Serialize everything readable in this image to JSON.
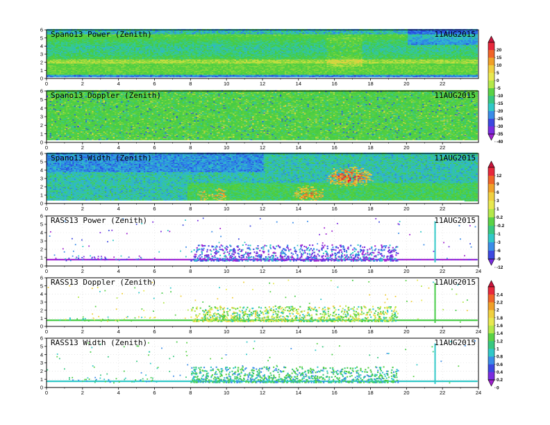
{
  "chart_data": [
    {
      "type": "heatmap",
      "title": "Spano13 Power (Zenith)",
      "date": "11AUG2015",
      "palette": "spano",
      "x_ticks": [
        "0",
        "2",
        "4",
        "6",
        "8",
        "10",
        "12",
        "14",
        "16",
        "18",
        "20",
        "22"
      ],
      "y_ticks": [
        "0",
        "1",
        "2",
        "3",
        "4",
        "5",
        "6"
      ],
      "xlim": [
        0,
        24
      ],
      "ylim": [
        0,
        6
      ],
      "colorbar": {
        "labels": [
          "20",
          "15",
          "10",
          "5",
          "0",
          "-5",
          "-10",
          "-15",
          "-20",
          "-25",
          "-30",
          "-35",
          "-40"
        ]
      }
    },
    {
      "type": "heatmap",
      "title": "Spano13 Doppler (Zenith)",
      "date": "11AUG2015",
      "palette": "spano",
      "x_ticks": [
        "0",
        "2",
        "4",
        "6",
        "8",
        "10",
        "12",
        "14",
        "16",
        "18",
        "20",
        "22"
      ],
      "y_ticks": [
        "0",
        "1",
        "2",
        "3",
        "4",
        "5",
        "6"
      ],
      "xlim": [
        0,
        24
      ],
      "ylim": [
        0,
        6
      ]
    },
    {
      "type": "heatmap",
      "title": "Spano13 Width (Zenith)",
      "date": "11AUG2015",
      "palette": "spano",
      "x_ticks": [
        "0",
        "2",
        "4",
        "6",
        "8",
        "10",
        "12",
        "14",
        "16",
        "18",
        "20",
        "22"
      ],
      "y_ticks": [
        "0",
        "1",
        "2",
        "3",
        "4",
        "5",
        "6"
      ],
      "xlim": [
        0,
        24
      ],
      "ylim": [
        0,
        6
      ],
      "colorbar": {
        "labels": [
          "12",
          "9",
          "6",
          "3",
          "1",
          "0.2",
          "-0.2",
          "-1",
          "-3",
          "-6",
          "-9",
          "-12"
        ]
      }
    },
    {
      "type": "scatter",
      "title": "RASS13 Power (Zenith)",
      "date": "11AUG2015",
      "palette": "rass-power",
      "x_ticks": [
        "0",
        "2",
        "4",
        "6",
        "8",
        "10",
        "12",
        "14",
        "16",
        "18",
        "20",
        "22",
        "24"
      ],
      "y_ticks": [
        "0",
        "1",
        "2",
        "3",
        "4",
        "5",
        "6"
      ],
      "xlim": [
        0,
        24
      ],
      "ylim": [
        0,
        6
      ]
    },
    {
      "type": "scatter",
      "title": "RASS13 Doppler (Zenith)",
      "date": "11AUG2015",
      "palette": "rass-doppler",
      "x_ticks": [
        "0",
        "2",
        "4",
        "6",
        "8",
        "10",
        "12",
        "14",
        "16",
        "18",
        "20",
        "22",
        "24"
      ],
      "y_ticks": [
        "0",
        "1",
        "2",
        "3",
        "4",
        "5",
        "6"
      ],
      "xlim": [
        0,
        24
      ],
      "ylim": [
        0,
        6
      ],
      "colorbar": {
        "labels": [
          "2.4",
          "2.2",
          "2",
          "1.8",
          "1.6",
          "1.4",
          "1.2",
          "1",
          "0.8",
          "0.6",
          "0.4",
          "0.2",
          "0"
        ]
      }
    },
    {
      "type": "scatter",
      "title": "RASS13 Width (Zenith)",
      "date": "11AUG2015",
      "palette": "rass-width",
      "x_ticks": [
        "0",
        "2",
        "4",
        "6",
        "8",
        "10",
        "12",
        "14",
        "16",
        "18",
        "20",
        "22",
        "24"
      ],
      "y_ticks": [
        "0",
        "1",
        "2",
        "3",
        "4",
        "5",
        "6"
      ],
      "xlim": [
        0,
        24
      ],
      "ylim": [
        0,
        6
      ]
    }
  ],
  "colors": {
    "axis": "#000000",
    "gridline": "#d8d8d8",
    "background": "#ffffff"
  }
}
